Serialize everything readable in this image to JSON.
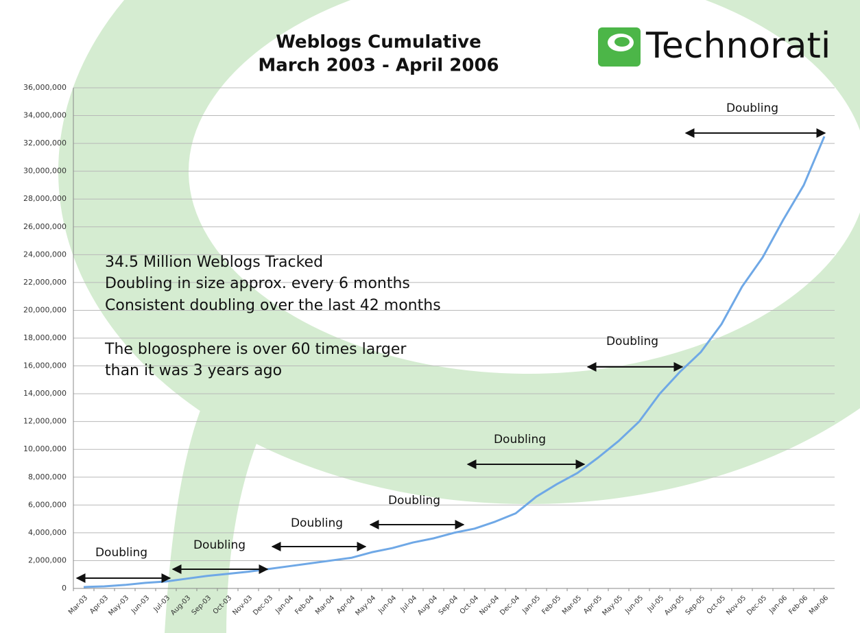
{
  "chart_data": {
    "type": "line",
    "title": "Weblogs Cumulative",
    "subtitle": "March 2003 - April 2006",
    "logo": "Technorati",
    "categories": [
      "Mar-03",
      "Apr-03",
      "May-03",
      "Jun-03",
      "Jul-03",
      "Aug-03",
      "Sep-03",
      "Oct-03",
      "Nov-03",
      "Dec-03",
      "Jan-04",
      "Feb-04",
      "Mar-04",
      "Apr-04",
      "May-04",
      "Jun-04",
      "Jul-04",
      "Aug-04",
      "Sep-04",
      "Oct-04",
      "Nov-04",
      "Dec-04",
      "Jan-05",
      "Feb-05",
      "Mar-05",
      "Apr-05",
      "May-05",
      "Jun-05",
      "Jul-05",
      "Aug-05",
      "Sep-05",
      "Oct-05",
      "Nov-05",
      "Dec-05",
      "Jan-06",
      "Feb-06",
      "Mar-06"
    ],
    "values": [
      100000,
      150000,
      250000,
      400000,
      500000,
      700000,
      900000,
      1050000,
      1200000,
      1400000,
      1600000,
      1800000,
      2000000,
      2200000,
      2600000,
      2900000,
      3300000,
      3600000,
      4000000,
      4300000,
      4800000,
      5400000,
      6600000,
      7500000,
      8300000,
      9400000,
      10600000,
      12000000,
      14000000,
      15600000,
      17000000,
      19000000,
      21700000,
      23800000,
      26500000,
      29000000,
      32500000
    ],
    "color": "#6fa8e6",
    "ylim": [
      0,
      36000000
    ],
    "yticks": [
      0,
      {
        "value": 2000000,
        "label": "2,000,000"
      },
      {
        "value": 4000000,
        "label": "4,000,000"
      },
      {
        "value": 6000000,
        "label": "6,000,000"
      },
      {
        "value": 8000000,
        "label": "8,000,000"
      },
      {
        "value": 10000000,
        "label": "10,000,000"
      },
      {
        "value": 12000000,
        "label": "12,000,000"
      },
      {
        "value": 14000000,
        "label": "14,000,000"
      },
      {
        "value": 16000000,
        "label": "16,000,000"
      },
      {
        "value": 18000000,
        "label": "18,000,000"
      },
      {
        "value": 20000000,
        "label": "20,000,000"
      },
      {
        "value": 22000000,
        "label": "22,000,000"
      },
      {
        "value": 24000000,
        "label": "24,000,000"
      },
      {
        "value": 26000000,
        "label": "26,000,000"
      },
      {
        "value": 28000000,
        "label": "28,000,000"
      },
      {
        "value": 30000000,
        "label": "30,000,000"
      },
      {
        "value": 32000000,
        "label": "32,000,000"
      },
      {
        "value": 34000000,
        "label": "34,000,000"
      },
      {
        "value": 36000000,
        "label": "36,000,000"
      }
    ],
    "grid": true,
    "notes": [
      "34.5 Million Weblogs Tracked",
      "Doubling in size approx. every 6 months",
      "Consistent doubling over the last 42 months",
      "The blogosphere is over 60 times larger",
      "than it was 3 years ago"
    ],
    "annotations": [
      "Doubling",
      "Doubling",
      "Doubling",
      "Doubling",
      "Doubling",
      "Doubling",
      "Doubling"
    ]
  }
}
